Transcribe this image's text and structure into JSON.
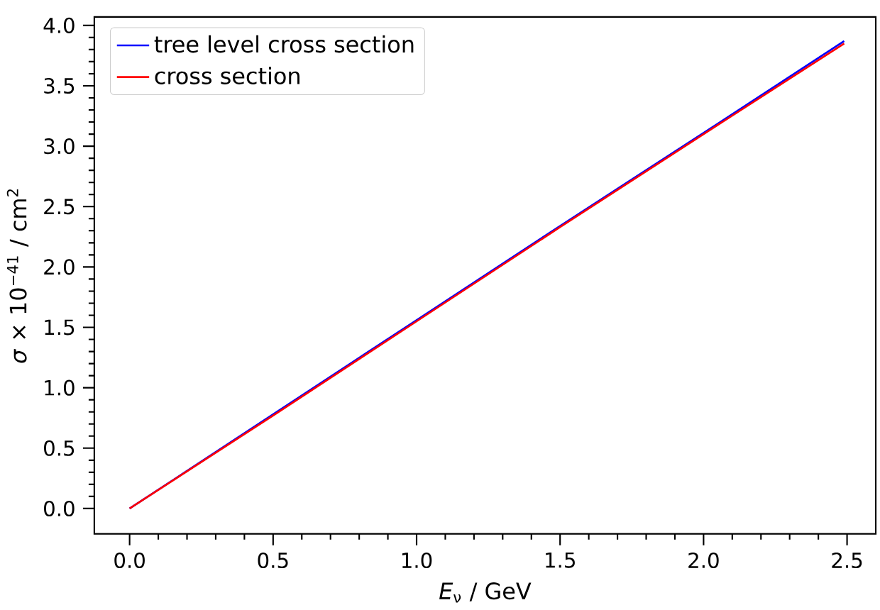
{
  "chart_data": {
    "type": "line",
    "xlabel": "*E*$_{ν}$ / GeV",
    "ylabel": "*σ* × 10$^{−41}$ / cm$^{2}$",
    "xlim": [
      -0.123,
      2.6
    ],
    "ylim": [
      -0.21,
      4.07
    ],
    "xticks": [
      {
        "value": 0,
        "label": "0.0"
      },
      {
        "value": 0.5,
        "label": "0.5"
      },
      {
        "value": 1,
        "label": "1.0"
      },
      {
        "value": 1.5,
        "label": "1.5"
      },
      {
        "value": 2,
        "label": "2.0"
      },
      {
        "value": 2.5,
        "label": "2.5"
      }
    ],
    "yticks": [
      {
        "value": 0,
        "label": "0.0"
      },
      {
        "value": 0.5,
        "label": "0.5"
      },
      {
        "value": 1,
        "label": "1.0"
      },
      {
        "value": 1.5,
        "label": "1.5"
      },
      {
        "value": 2,
        "label": "2.0"
      },
      {
        "value": 2.5,
        "label": "2.5"
      },
      {
        "value": 3,
        "label": "3.0"
      },
      {
        "value": 3.5,
        "label": "3.5"
      },
      {
        "value": 4,
        "label": "4.0"
      }
    ],
    "x": [
      0,
      0.5,
      1.0,
      1.5,
      2.0,
      2.49
    ],
    "series": [
      {
        "name": "tree level cross section",
        "color": "#0000ff",
        "values": [
          0,
          0.78,
          1.56,
          2.34,
          3.11,
          3.87
        ]
      },
      {
        "name": "cross section",
        "color": "#ff0000",
        "values": [
          0,
          0.77,
          1.55,
          2.33,
          3.1,
          3.85
        ]
      }
    ],
    "legend": "top left",
    "grid": false,
    "marker": "none",
    "line_style": "solid"
  }
}
